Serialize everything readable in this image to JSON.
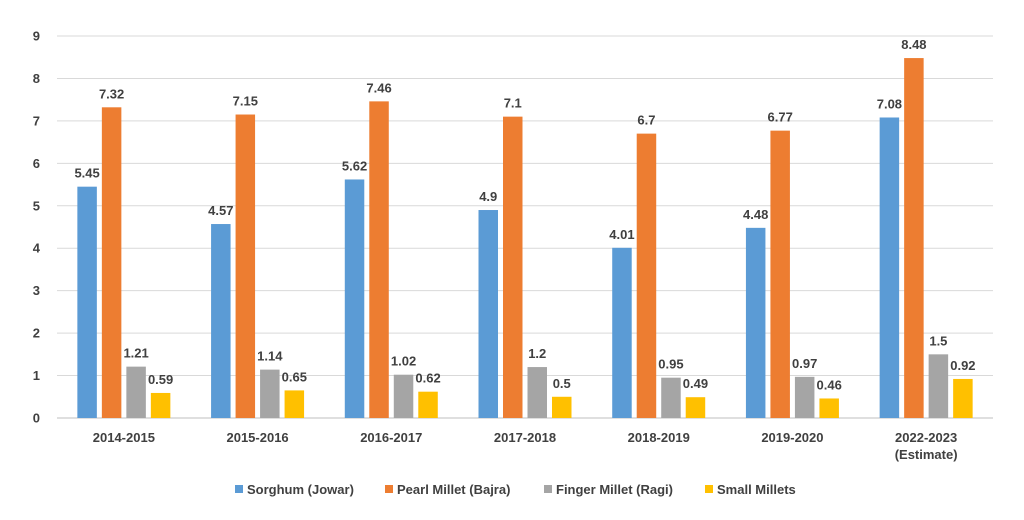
{
  "chart_data": {
    "type": "bar",
    "title": "",
    "xlabel": "",
    "ylabel": "",
    "ylim": [
      0,
      9
    ],
    "yticks": [
      0,
      1,
      2,
      3,
      4,
      5,
      6,
      7,
      8,
      9
    ],
    "grid": true,
    "legend_position": "bottom",
    "categories": [
      [
        "2014-2015"
      ],
      [
        "2015-2016"
      ],
      [
        "2016-2017"
      ],
      [
        "2017-2018"
      ],
      [
        "2018-2019"
      ],
      [
        "2019-2020"
      ],
      [
        "2022-2023",
        "(Estimate)"
      ]
    ],
    "series": [
      {
        "name": "Sorghum (Jowar)",
        "color": "#5b9bd5",
        "values": [
          5.45,
          4.57,
          5.62,
          4.9,
          4.01,
          4.48,
          7.08
        ]
      },
      {
        "name": "Pearl Millet (Bajra)",
        "color": "#ed7d31",
        "values": [
          7.32,
          7.15,
          7.46,
          7.1,
          6.7,
          6.77,
          8.48
        ]
      },
      {
        "name": "Finger Millet (Ragi)",
        "color": "#a5a5a5",
        "values": [
          1.21,
          1.14,
          1.02,
          1.2,
          0.95,
          0.97,
          1.5
        ]
      },
      {
        "name": "Small Millets",
        "color": "#ffc000",
        "values": [
          0.59,
          0.65,
          0.62,
          0.5,
          0.49,
          0.46,
          0.92
        ]
      }
    ]
  }
}
